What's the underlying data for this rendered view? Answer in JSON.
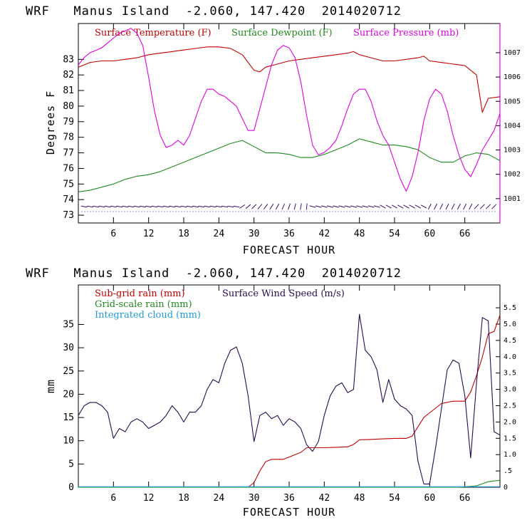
{
  "colors": {
    "temperature": "#c00000",
    "dewpoint": "#1f8a1f",
    "pressure": "#e000e0",
    "subgrid_rain": "#c00000",
    "grid_rain": "#1f8a1f",
    "cloud": "#1f9ad6",
    "wind": "#2a0a50"
  },
  "chart_data": [
    {
      "type": "line",
      "title": "WRF   Manus Island  -2.060, 147.420  2014020712",
      "xlabel": "FORECAST HOUR",
      "ylabel": "Degrees F",
      "xlim": [
        0,
        72
      ],
      "ylim": [
        72.5,
        85.3
      ],
      "y2lim": [
        1000.0,
        1008.2
      ],
      "x_ticks": [
        6,
        12,
        18,
        24,
        30,
        36,
        42,
        48,
        54,
        60,
        66
      ],
      "x_tick_labels": [
        "6",
        "12",
        "18",
        "24",
        "30",
        "36",
        "42",
        "48",
        "54",
        "60",
        "66"
      ],
      "y_ticks": [
        73,
        74,
        75,
        76,
        77,
        78,
        79,
        80,
        81,
        82,
        83
      ],
      "y_tick_labels": [
        "73",
        "74",
        "75",
        "76",
        "77",
        "78",
        "79",
        "80",
        "81",
        "82",
        "83"
      ],
      "y2_ticks": [
        1001,
        1002,
        1003,
        1004,
        1005,
        1006,
        1007
      ],
      "y2_tick_labels": [
        "1001",
        "1002",
        "1003",
        "1004",
        "1005",
        "1006",
        "1007"
      ],
      "legend": [
        "Surface Temperature (F)",
        "Surface Dewpoint (F)",
        "Surface Pressure (mb)"
      ],
      "series": [
        {
          "name": "Surface Temperature (F)",
          "axis": "left",
          "x": [
            0,
            2,
            4,
            6,
            8,
            10,
            12,
            14,
            16,
            18,
            20,
            22,
            24,
            26,
            28,
            29,
            30,
            31,
            32,
            34,
            36,
            38,
            40,
            42,
            44,
            46,
            47,
            48,
            50,
            52,
            54,
            56,
            58,
            59,
            60,
            62,
            64,
            66,
            68,
            69,
            70,
            72
          ],
          "values": [
            82.5,
            82.8,
            82.9,
            82.9,
            83.0,
            83.1,
            83.3,
            83.4,
            83.5,
            83.6,
            83.7,
            83.8,
            83.8,
            83.7,
            83.3,
            82.8,
            82.3,
            82.2,
            82.5,
            82.7,
            82.9,
            83.0,
            83.1,
            83.2,
            83.3,
            83.4,
            83.5,
            83.3,
            83.1,
            82.9,
            82.9,
            83.0,
            83.1,
            83.2,
            82.9,
            82.8,
            82.7,
            82.6,
            82.0,
            79.6,
            80.5,
            80.6
          ]
        },
        {
          "name": "Surface Dewpoint (F)",
          "axis": "left",
          "x": [
            0,
            2,
            4,
            6,
            8,
            10,
            12,
            14,
            16,
            18,
            20,
            22,
            24,
            26,
            28,
            30,
            32,
            34,
            36,
            38,
            40,
            42,
            44,
            46,
            48,
            50,
            52,
            54,
            56,
            58,
            60,
            62,
            64,
            66,
            68,
            70,
            72
          ],
          "values": [
            74.5,
            74.6,
            74.8,
            75.0,
            75.3,
            75.5,
            75.6,
            75.8,
            76.1,
            76.4,
            76.7,
            77.0,
            77.3,
            77.6,
            77.8,
            77.4,
            77.0,
            77.0,
            76.9,
            76.7,
            76.7,
            76.9,
            77.2,
            77.5,
            77.9,
            77.7,
            77.5,
            77.5,
            77.4,
            77.2,
            76.7,
            76.4,
            76.4,
            76.8,
            77.0,
            76.9,
            76.5
          ]
        },
        {
          "name": "Surface Pressure (mb)",
          "axis": "right",
          "x": [
            0,
            1,
            2,
            3,
            4,
            5,
            6,
            7,
            8,
            9,
            10,
            11,
            12,
            13,
            14,
            15,
            16,
            17,
            18,
            19,
            20,
            21,
            22,
            23,
            24,
            25,
            26,
            27,
            28,
            29,
            30,
            31,
            32,
            33,
            34,
            35,
            36,
            37,
            38,
            39,
            40,
            41,
            42,
            43,
            44,
            45,
            46,
            47,
            48,
            49,
            50,
            51,
            52,
            53,
            54,
            55,
            56,
            57,
            58,
            59,
            60,
            61,
            62,
            63,
            64,
            65,
            66,
            67,
            68,
            69,
            70,
            71,
            72
          ],
          "values": [
            1006.5,
            1006.8,
            1007.0,
            1007.1,
            1007.2,
            1007.4,
            1007.6,
            1007.8,
            1007.9,
            1008.0,
            1007.8,
            1007.3,
            1006.0,
            1004.6,
            1003.6,
            1003.1,
            1003.2,
            1003.4,
            1003.2,
            1003.6,
            1004.3,
            1005.0,
            1005.5,
            1005.5,
            1005.3,
            1005.2,
            1005.0,
            1004.8,
            1004.3,
            1003.8,
            1003.8,
            1004.7,
            1005.6,
            1006.5,
            1007.1,
            1007.3,
            1007.2,
            1006.8,
            1005.8,
            1004.4,
            1003.2,
            1002.8,
            1002.9,
            1003.1,
            1003.4,
            1004.0,
            1004.7,
            1005.3,
            1005.5,
            1005.5,
            1005.0,
            1004.2,
            1003.6,
            1003.2,
            1002.5,
            1001.8,
            1001.3,
            1001.9,
            1002.9,
            1004.2,
            1005.1,
            1005.5,
            1005.3,
            1004.6,
            1003.6,
            1002.8,
            1002.2,
            1001.9,
            1002.4,
            1003.0,
            1003.4,
            1003.8,
            1004.5
          ]
        }
      ],
      "wind_barbs": "row of wind barbs along the bottom of the panel (values not labeled)"
    },
    {
      "type": "line",
      "title": "WRF   Manus Island  -2.060, 147.420  2014020712",
      "xlabel": "FORECAST HOUR",
      "ylabel": "mm",
      "xlim": [
        0,
        72
      ],
      "ylim": [
        0,
        43.5
      ],
      "y2lim": [
        0,
        6.2
      ],
      "x_ticks": [
        6,
        12,
        18,
        24,
        30,
        36,
        42,
        48,
        54,
        60,
        66
      ],
      "x_tick_labels": [
        "6",
        "12",
        "18",
        "24",
        "30",
        "36",
        "42",
        "48",
        "54",
        "60",
        "66"
      ],
      "y_ticks": [
        0,
        5,
        10,
        15,
        20,
        25,
        30,
        35
      ],
      "y_tick_labels": [
        "0",
        "5",
        "10",
        "15",
        "20",
        "25",
        "30",
        "35"
      ],
      "y2_ticks": [
        0,
        0.5,
        1.0,
        1.5,
        2.0,
        2.5,
        3.0,
        3.5,
        4.0,
        4.5,
        5.0,
        5.5
      ],
      "y2_tick_labels": [
        "0",
        ".5",
        "1.0",
        "1.5",
        "2.0",
        "2.5",
        "3.0",
        "3.5",
        "4.0",
        "4.5",
        "5.0",
        "5.5"
      ],
      "legend": [
        "Sub-grid rain (mm)",
        "Grid-scale rain (mm)",
        "Integrated cloud (mm)",
        "Surface Wind Speed (m/s)"
      ],
      "series": [
        {
          "name": "Sub-grid rain (mm)",
          "axis": "left",
          "x": [
            0,
            29,
            30,
            31,
            32,
            33,
            34,
            35,
            36,
            37,
            38,
            39,
            40,
            42,
            44,
            46,
            47,
            48,
            50,
            52,
            54,
            56,
            57,
            58,
            59,
            60,
            61,
            62,
            64,
            66,
            67,
            68,
            69,
            70,
            71,
            72
          ],
          "values": [
            0,
            0,
            1.0,
            3.5,
            5.5,
            6.0,
            6.0,
            6.0,
            6.5,
            7.0,
            7.5,
            8.5,
            8.5,
            8.5,
            8.6,
            8.7,
            9.2,
            10.2,
            10.3,
            10.4,
            10.5,
            10.5,
            11.0,
            13.0,
            15.0,
            16.0,
            17.0,
            18.0,
            18.5,
            18.5,
            20.5,
            24.0,
            28.0,
            33.0,
            33.5,
            37.0
          ]
        },
        {
          "name": "Grid-scale rain (mm)",
          "axis": "left",
          "x": [
            0,
            65,
            68,
            70,
            72
          ],
          "values": [
            0,
            0,
            0.3,
            1.2,
            1.5
          ]
        },
        {
          "name": "Integrated cloud (mm)",
          "axis": "left",
          "x": [
            0,
            72
          ],
          "values": [
            0.1,
            0.1
          ]
        },
        {
          "name": "Surface Wind Speed (m/s)",
          "axis": "right",
          "x": [
            0,
            1,
            2,
            3,
            4,
            5,
            6,
            7,
            8,
            9,
            10,
            11,
            12,
            13,
            14,
            15,
            16,
            17,
            18,
            19,
            20,
            21,
            22,
            23,
            24,
            25,
            26,
            27,
            28,
            29,
            30,
            31,
            32,
            33,
            34,
            35,
            36,
            37,
            38,
            39,
            40,
            41,
            42,
            43,
            44,
            45,
            46,
            47,
            48,
            49,
            50,
            51,
            52,
            53,
            54,
            55,
            56,
            57,
            58,
            59,
            60,
            61,
            62,
            63,
            64,
            65,
            66,
            67,
            68,
            69,
            70,
            71,
            72
          ],
          "values": [
            2.2,
            2.5,
            2.6,
            2.6,
            2.5,
            2.3,
            1.5,
            1.8,
            1.7,
            2.0,
            2.1,
            2.0,
            1.8,
            1.9,
            2.0,
            2.2,
            2.5,
            2.3,
            2.0,
            2.3,
            2.3,
            2.5,
            3.0,
            3.3,
            3.2,
            3.8,
            4.2,
            4.3,
            3.8,
            2.8,
            1.4,
            2.2,
            2.3,
            2.1,
            2.2,
            1.9,
            2.1,
            2.0,
            1.8,
            1.3,
            1.1,
            1.4,
            2.2,
            2.8,
            3.1,
            3.2,
            2.9,
            3.0,
            5.3,
            4.2,
            4.0,
            3.6,
            2.6,
            3.3,
            2.7,
            2.5,
            2.4,
            2.2,
            0.8,
            0.1,
            0.1,
            1.2,
            2.4,
            3.6,
            3.9,
            3.8,
            2.8,
            0.9,
            3.2,
            5.2,
            5.1,
            1.7,
            1.6
          ]
        }
      ]
    }
  ]
}
